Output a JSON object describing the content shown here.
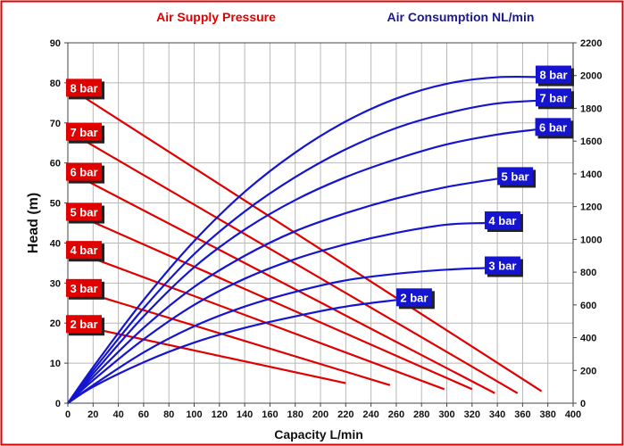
{
  "chart_data": {
    "type": "line",
    "header_left": "Air Supply Pressure",
    "header_right": "Air Consumption NL/min",
    "xlabel": "Capacity L/min",
    "ylabel": "Head (m)",
    "xlim": [
      0,
      400
    ],
    "ylim_left": [
      0,
      90
    ],
    "ylim_right": [
      0,
      2200
    ],
    "x_ticks": [
      "0",
      "20",
      "40",
      "60",
      "80",
      "100",
      "120",
      "140",
      "160",
      "180",
      "200",
      "220",
      "240",
      "260",
      "280",
      "300",
      "320",
      "340",
      "360",
      "380",
      "400"
    ],
    "y_left_ticks": [
      "0",
      "10",
      "20",
      "30",
      "40",
      "50",
      "60",
      "70",
      "80",
      "90"
    ],
    "y_right_ticks": [
      "0",
      "200",
      "400",
      "600",
      "800",
      "1000",
      "1200",
      "1400",
      "1600",
      "1800",
      "2000",
      "2200"
    ],
    "grid": true,
    "colors": {
      "pressure": "#e00000",
      "consumption": "#1515d0",
      "header_left": "#e00000",
      "header_right": "#1a1a8c",
      "frame": "#e00000"
    },
    "pressure_series": [
      {
        "name": "2 bar",
        "x": [
          0,
          220
        ],
        "y": [
          20,
          5
        ]
      },
      {
        "name": "3 bar",
        "x": [
          0,
          255
        ],
        "y": [
          29,
          4.5
        ]
      },
      {
        "name": "4 bar",
        "x": [
          0,
          298
        ],
        "y": [
          38.5,
          3.5
        ]
      },
      {
        "name": "5 bar",
        "x": [
          0,
          320
        ],
        "y": [
          48,
          3.5
        ]
      },
      {
        "name": "6 bar",
        "x": [
          0,
          338
        ],
        "y": [
          58,
          2.5
        ]
      },
      {
        "name": "7 bar",
        "x": [
          0,
          356
        ],
        "y": [
          68,
          2.5
        ]
      },
      {
        "name": "8 bar",
        "x": [
          0,
          375
        ],
        "y": [
          79,
          3
        ]
      }
    ],
    "consumption_series": [
      {
        "name": "2 bar",
        "x": [
          0,
          20,
          60,
          100,
          140,
          180,
          220,
          260
        ],
        "y": [
          0,
          100,
          250,
          370,
          460,
          530,
          590,
          630
        ]
      },
      {
        "name": "3 bar",
        "x": [
          0,
          20,
          60,
          100,
          140,
          180,
          220,
          260,
          300,
          330
        ],
        "y": [
          0,
          110,
          310,
          470,
          590,
          680,
          750,
          790,
          815,
          825
        ]
      },
      {
        "name": "4 bar",
        "x": [
          0,
          20,
          60,
          100,
          140,
          180,
          220,
          260,
          300,
          330
        ],
        "y": [
          0,
          140,
          390,
          600,
          760,
          880,
          970,
          1040,
          1090,
          1100
        ]
      },
      {
        "name": "5 bar",
        "x": [
          0,
          20,
          60,
          100,
          140,
          180,
          220,
          260,
          300,
          340
        ],
        "y": [
          0,
          160,
          460,
          710,
          900,
          1050,
          1160,
          1250,
          1320,
          1370
        ]
      },
      {
        "name": "6 bar",
        "x": [
          0,
          20,
          60,
          100,
          140,
          180,
          220,
          260,
          300,
          340,
          370
        ],
        "y": [
          0,
          180,
          530,
          830,
          1060,
          1240,
          1380,
          1490,
          1580,
          1640,
          1670
        ]
      },
      {
        "name": "7 bar",
        "x": [
          0,
          20,
          60,
          100,
          140,
          180,
          220,
          260,
          300,
          340,
          380
        ],
        "y": [
          0,
          200,
          580,
          910,
          1170,
          1380,
          1550,
          1680,
          1770,
          1830,
          1850
        ]
      },
      {
        "name": "8 bar",
        "x": [
          0,
          20,
          60,
          100,
          140,
          180,
          220,
          260,
          300,
          340,
          380
        ],
        "y": [
          0,
          220,
          630,
          990,
          1290,
          1530,
          1720,
          1860,
          1950,
          1990,
          1990
        ]
      }
    ]
  }
}
